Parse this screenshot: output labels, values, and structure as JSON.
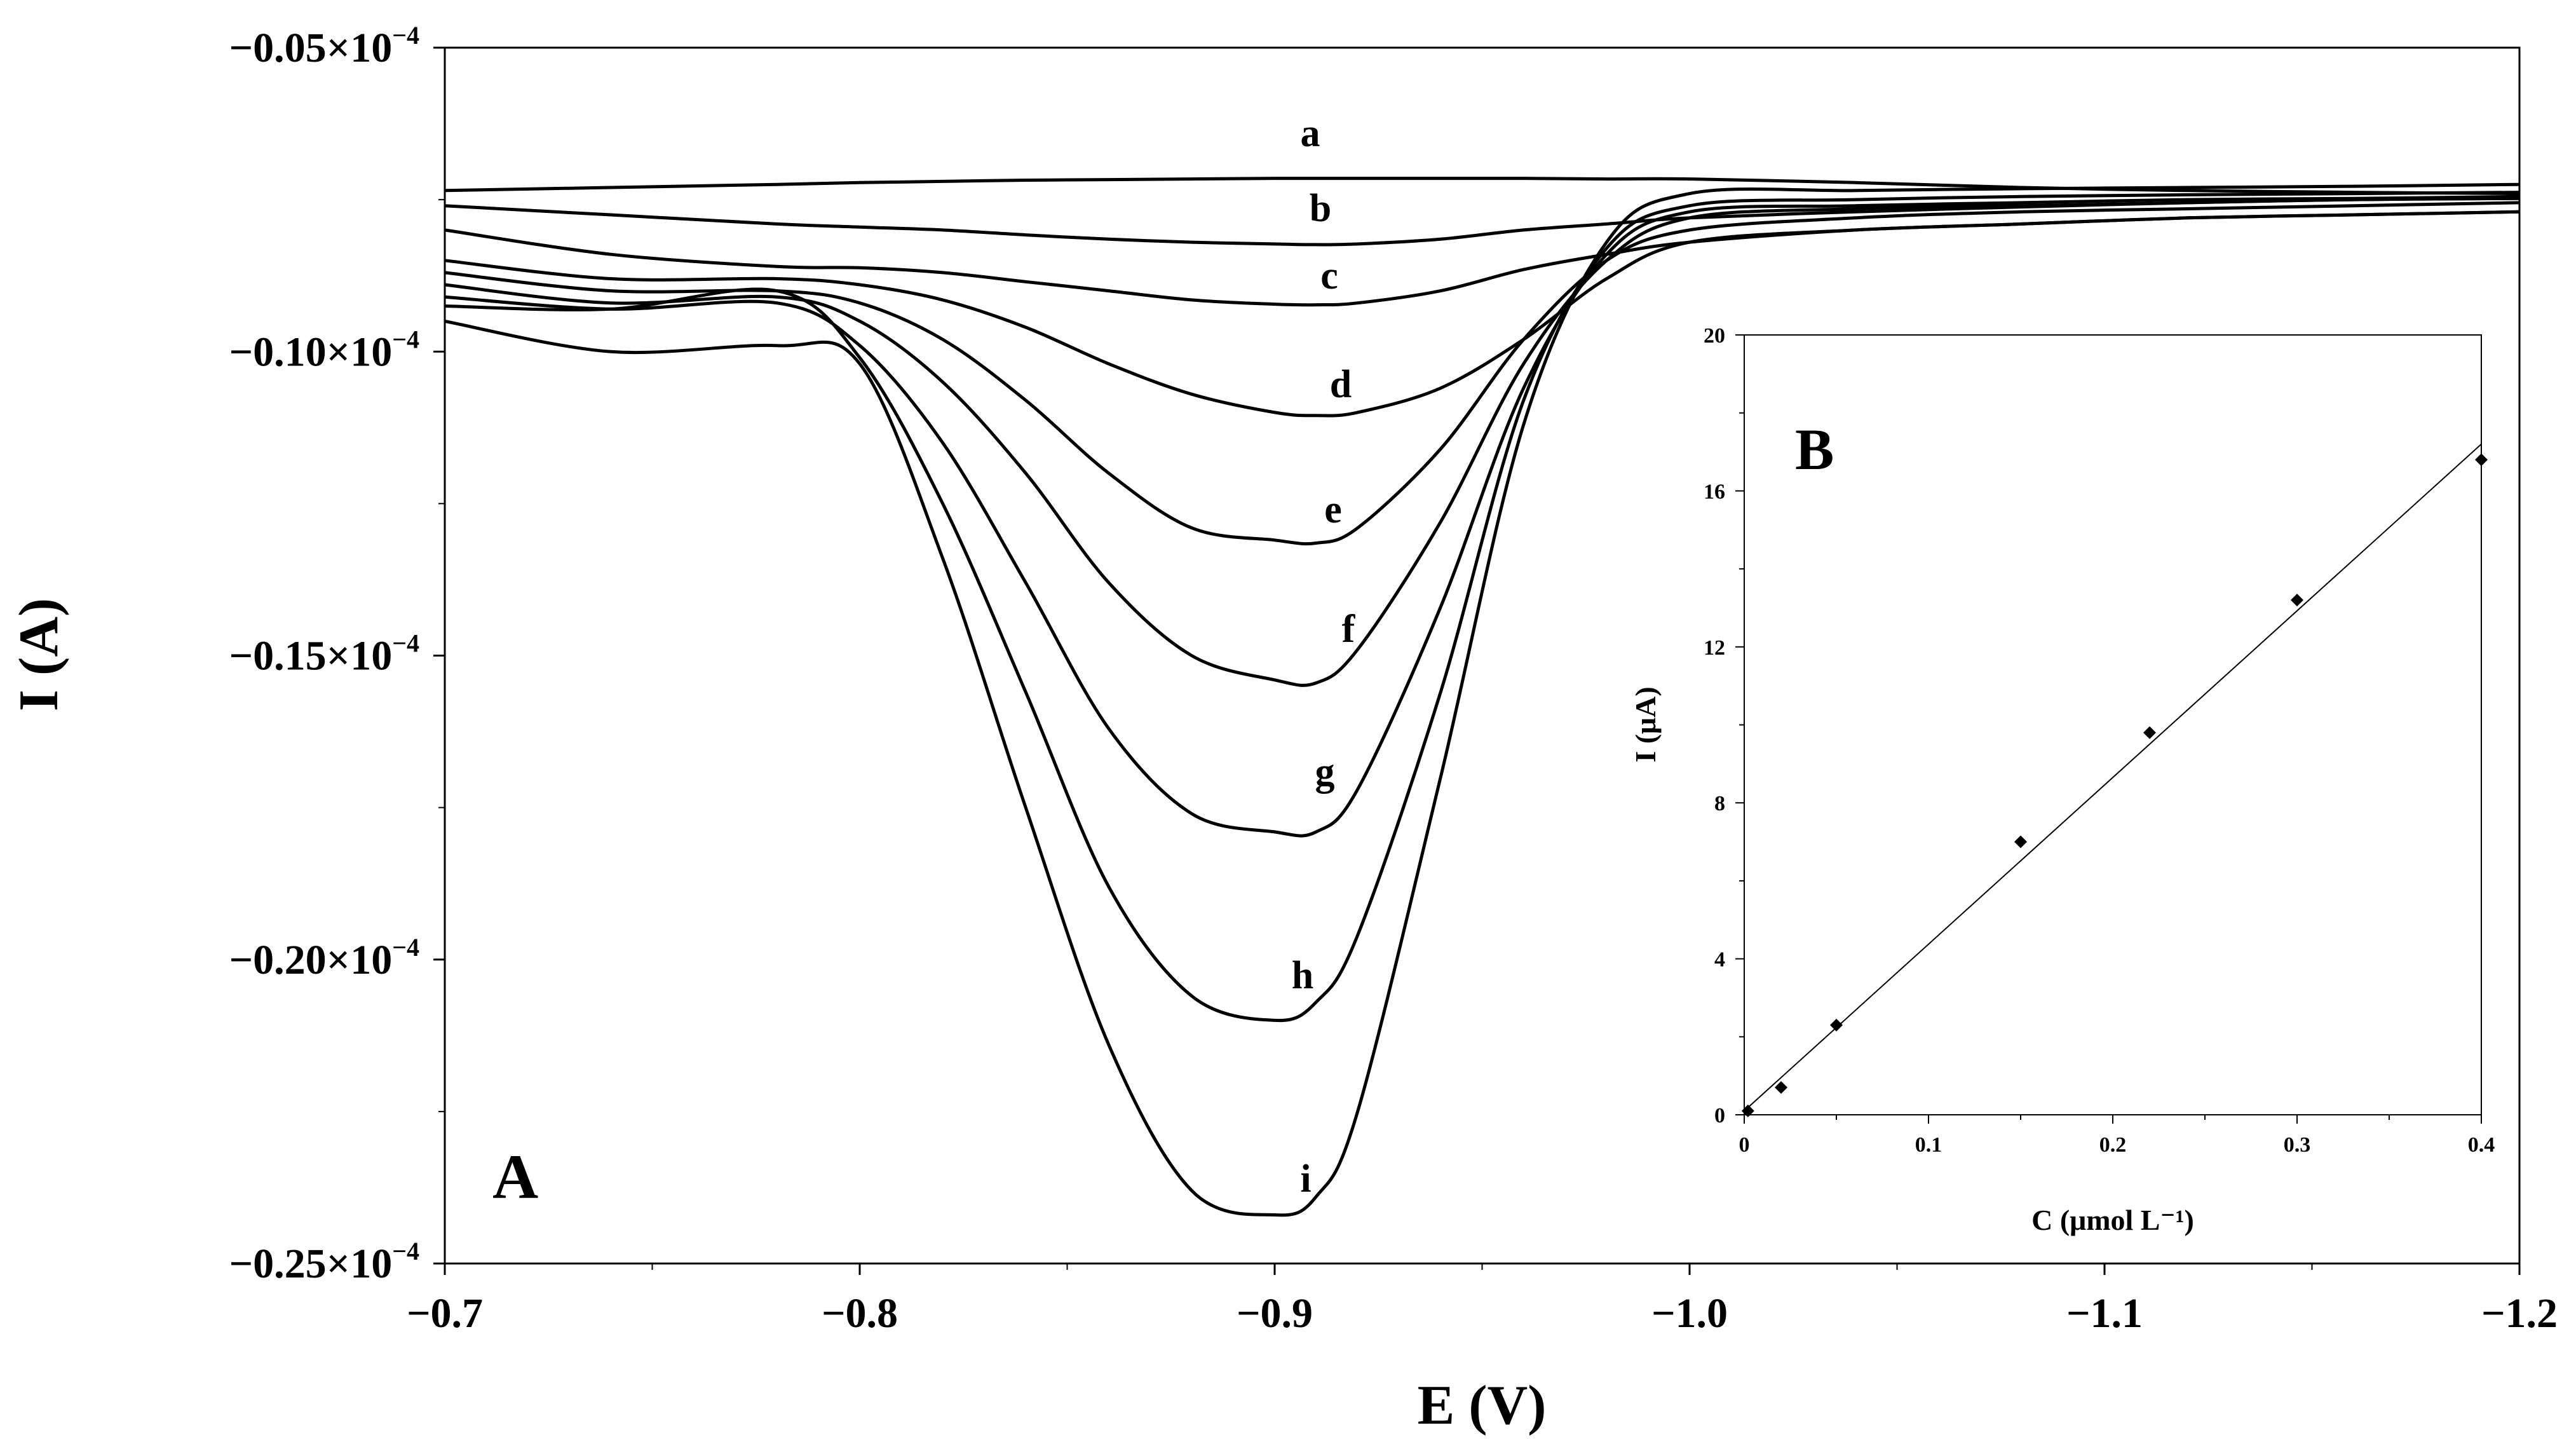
{
  "chart_data": [
    {
      "panel": "A",
      "type": "line",
      "title": "",
      "xlabel": "E (V)",
      "ylabel": "I (A)",
      "xlim": [
        -0.7,
        -1.2
      ],
      "ylim": [
        -0.25,
        -0.05
      ],
      "y_multiplier_label": "×10",
      "y_exponent": "−4",
      "x_ticks": [
        -0.7,
        -0.8,
        -0.9,
        -1.0,
        -1.1,
        -1.2
      ],
      "x_tick_labels": [
        "−0.7",
        "−0.8",
        "−0.9",
        "−1.0",
        "−1.1",
        "−1.2"
      ],
      "y_ticks": [
        -0.05,
        -0.1,
        -0.15,
        -0.2,
        -0.25
      ],
      "y_tick_labels": [
        "−0.05",
        "−0.10",
        "−0.15",
        "−0.20",
        "−0.25"
      ],
      "grid": false,
      "x": [
        -0.7,
        -0.74,
        -0.78,
        -0.8,
        -0.82,
        -0.84,
        -0.86,
        -0.88,
        -0.9,
        -0.91,
        -0.92,
        -0.94,
        -0.96,
        -0.98,
        -1.0,
        -1.04,
        -1.08,
        -1.12,
        -1.16,
        -1.2
      ],
      "series": [
        {
          "name": "a",
          "values": [
            -0.0735,
            -0.073,
            -0.0725,
            -0.0722,
            -0.072,
            -0.0718,
            -0.0717,
            -0.0716,
            -0.0715,
            -0.0715,
            -0.0715,
            -0.0715,
            -0.0715,
            -0.0716,
            -0.0716,
            -0.0722,
            -0.073,
            -0.0735,
            -0.0738,
            -0.074
          ]
        },
        {
          "name": "b",
          "values": [
            -0.076,
            -0.0775,
            -0.079,
            -0.0795,
            -0.08,
            -0.0808,
            -0.0815,
            -0.082,
            -0.0823,
            -0.0824,
            -0.0823,
            -0.0815,
            -0.08,
            -0.079,
            -0.078,
            -0.077,
            -0.0762,
            -0.0755,
            -0.075,
            -0.0748
          ]
        },
        {
          "name": "c",
          "values": [
            -0.08,
            -0.084,
            -0.086,
            -0.0862,
            -0.087,
            -0.0885,
            -0.09,
            -0.0915,
            -0.0922,
            -0.0923,
            -0.092,
            -0.09,
            -0.0865,
            -0.084,
            -0.082,
            -0.08,
            -0.079,
            -0.078,
            -0.0775,
            -0.077
          ]
        },
        {
          "name": "d",
          "values": [
            -0.085,
            -0.088,
            -0.088,
            -0.089,
            -0.0915,
            -0.096,
            -0.102,
            -0.107,
            -0.11,
            -0.1105,
            -0.11,
            -0.106,
            -0.098,
            -0.088,
            -0.082,
            -0.08,
            -0.079,
            -0.078,
            -0.0775,
            -0.077
          ]
        },
        {
          "name": "e",
          "values": [
            -0.087,
            -0.09,
            -0.09,
            -0.092,
            -0.098,
            -0.108,
            -0.12,
            -0.129,
            -0.131,
            -0.1315,
            -0.129,
            -0.116,
            -0.098,
            -0.085,
            -0.08,
            -0.078,
            -0.077,
            -0.0765,
            -0.076,
            -0.0755
          ]
        },
        {
          "name": "f",
          "values": [
            -0.089,
            -0.092,
            -0.091,
            -0.095,
            -0.105,
            -0.12,
            -0.138,
            -0.15,
            -0.154,
            -0.1545,
            -0.149,
            -0.128,
            -0.102,
            -0.085,
            -0.078,
            -0.0765,
            -0.076,
            -0.0755,
            -0.075,
            -0.0748
          ]
        },
        {
          "name": "g",
          "values": [
            -0.091,
            -0.093,
            -0.092,
            -0.099,
            -0.115,
            -0.138,
            -0.162,
            -0.176,
            -0.179,
            -0.179,
            -0.172,
            -0.142,
            -0.106,
            -0.084,
            -0.077,
            -0.076,
            -0.0755,
            -0.075,
            -0.0748,
            -0.0745
          ]
        },
        {
          "name": "h",
          "values": [
            -0.0925,
            -0.093,
            -0.09,
            -0.101,
            -0.125,
            -0.156,
            -0.188,
            -0.206,
            -0.21,
            -0.207,
            -0.196,
            -0.156,
            -0.108,
            -0.083,
            -0.076,
            -0.075,
            -0.0745,
            -0.0742,
            -0.074,
            -0.0738
          ]
        },
        {
          "name": "i",
          "values": [
            -0.095,
            -0.1,
            -0.099,
            -0.102,
            -0.134,
            -0.175,
            -0.214,
            -0.238,
            -0.242,
            -0.239,
            -0.225,
            -0.17,
            -0.112,
            -0.082,
            -0.074,
            -0.0735,
            -0.0732,
            -0.073,
            -0.0728,
            -0.0725
          ]
        }
      ],
      "curve_labels": [
        "a",
        "b",
        "c",
        "d",
        "e",
        "f",
        "g",
        "h",
        "i"
      ],
      "panel_label": "A"
    },
    {
      "panel": "B",
      "type": "scatter",
      "title": "",
      "xlabel": "C (μmol L⁻¹)",
      "ylabel": "I (μA)",
      "xlim": [
        0,
        0.4
      ],
      "ylim": [
        0,
        20
      ],
      "x_ticks": [
        0,
        0.1,
        0.2,
        0.3,
        0.4
      ],
      "x_tick_labels": [
        "0",
        "0.1",
        "0.2",
        "0.3",
        "0.4"
      ],
      "y_ticks": [
        0,
        4,
        8,
        12,
        16,
        20
      ],
      "y_tick_labels": [
        "0",
        "4",
        "8",
        "12",
        "16",
        "20"
      ],
      "grid": false,
      "points": {
        "x": [
          0.002,
          0.02,
          0.05,
          0.15,
          0.22,
          0.3,
          0.4
        ],
        "y": [
          0.1,
          0.7,
          2.3,
          7.0,
          9.8,
          13.2,
          16.8
        ]
      },
      "fit_line": {
        "x": [
          0,
          0.4
        ],
        "y": [
          0.1,
          17.2
        ]
      },
      "panel_label": "B"
    }
  ]
}
